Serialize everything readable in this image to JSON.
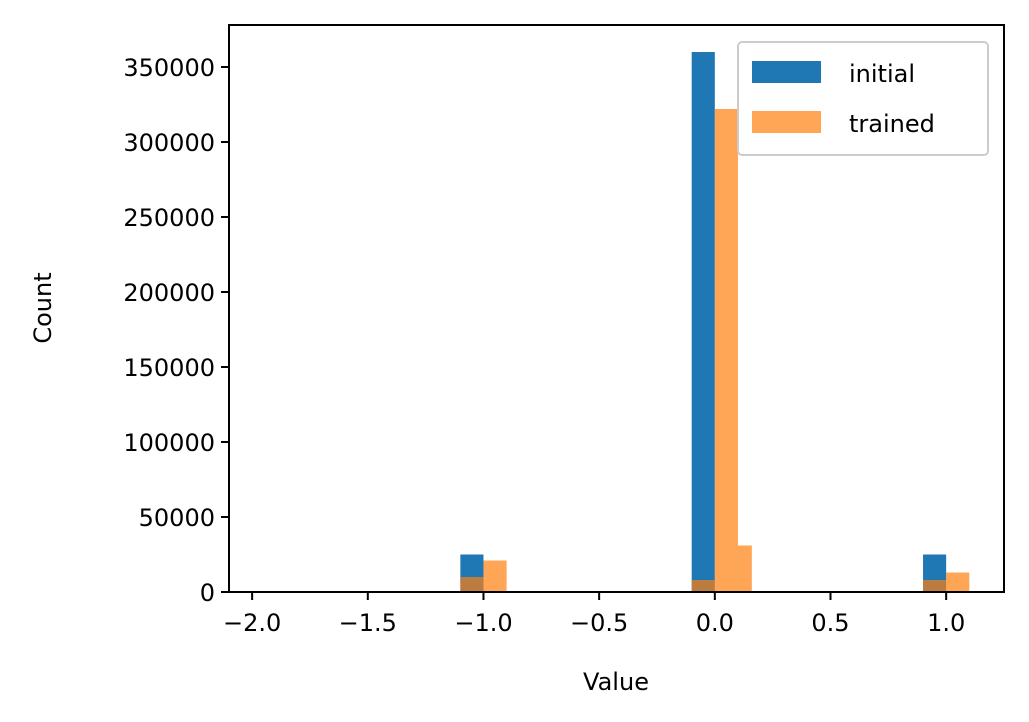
{
  "chart_data": {
    "type": "bar",
    "xlabel": "Value",
    "ylabel": "Count",
    "xlim": [
      -2.1,
      1.25
    ],
    "ylim": [
      0,
      378000
    ],
    "bin_width": 0.1,
    "xticks": [
      -2.0,
      -1.5,
      -1.0,
      -0.5,
      0.0,
      0.5,
      1.0
    ],
    "xtick_labels": [
      "−2.0",
      "−1.5",
      "−1.0",
      "−0.5",
      "0.0",
      "0.5",
      "1.0"
    ],
    "yticks": [
      0,
      50000,
      100000,
      150000,
      200000,
      250000,
      300000,
      350000
    ],
    "ytick_labels": [
      "0",
      "50000",
      "100000",
      "150000",
      "200000",
      "250000",
      "300000",
      "350000"
    ],
    "legend_position": "upper right",
    "series": [
      {
        "name": "initial",
        "color": "#1f77b4",
        "opacity": 1.0,
        "bins": [
          {
            "x0": -1.1,
            "x1": -1.0,
            "value": 25000
          },
          {
            "x0": -0.1,
            "x1": 0.0,
            "value": 360000
          },
          {
            "x0": 0.9,
            "x1": 1.0,
            "value": 25000
          }
        ]
      },
      {
        "name": "trained",
        "color": "#ff7f0e",
        "opacity": 0.7,
        "bins": [
          {
            "x0": -1.1,
            "x1": -1.0,
            "value": 10000
          },
          {
            "x0": -1.0,
            "x1": -0.9,
            "value": 21000
          },
          {
            "x0": -0.1,
            "x1": 0.0,
            "value": 8000
          },
          {
            "x0": 0.0,
            "x1": 0.1,
            "value": 322000
          },
          {
            "x0": 0.1,
            "x1": 0.16,
            "value": 31000
          },
          {
            "x0": 0.9,
            "x1": 1.0,
            "value": 8000
          },
          {
            "x0": 1.0,
            "x1": 1.1,
            "value": 13000
          }
        ]
      }
    ]
  }
}
